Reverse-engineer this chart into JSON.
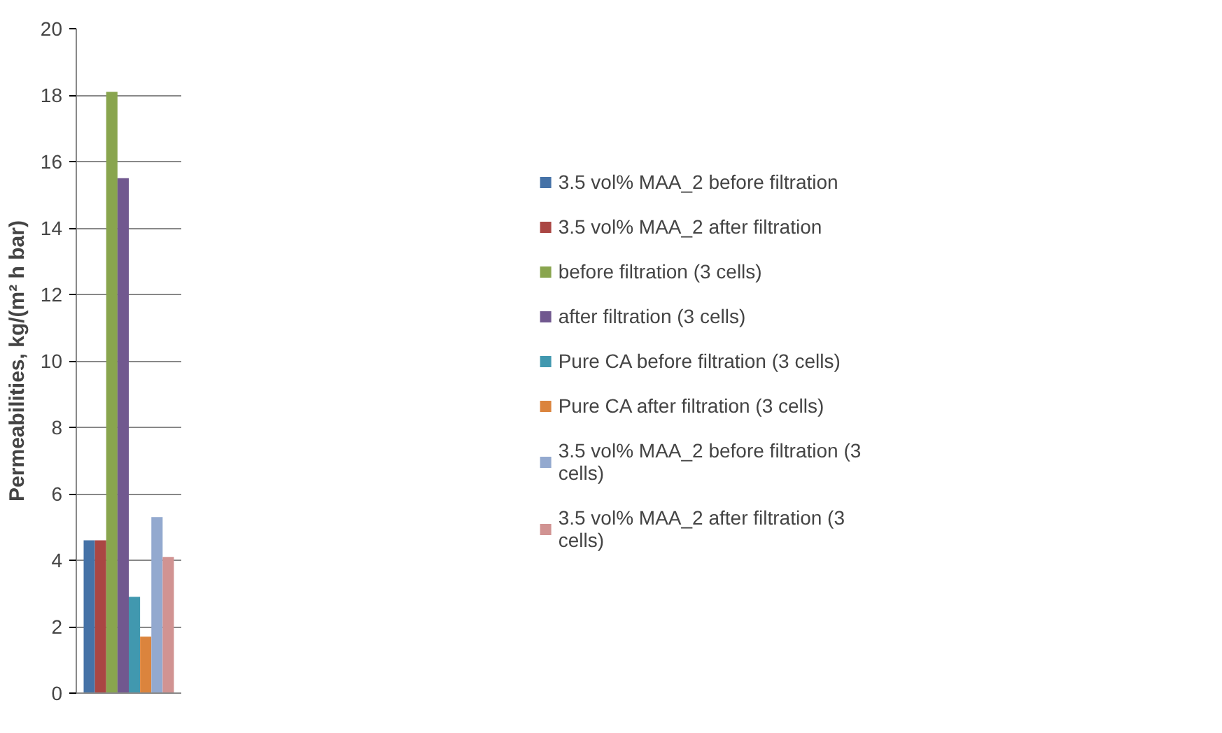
{
  "chart_data": {
    "type": "bar",
    "ylabel": "Permeabilities, kg/(m² h bar)",
    "categories": [
      null
    ],
    "series": [
      {
        "name": "3.5 vol% MAA_2 before filtration",
        "color": "#4572a7",
        "values": [
          4.6
        ]
      },
      {
        "name": "3.5 vol% MAA_2 after filtration",
        "color": "#aa4643",
        "values": [
          4.6
        ]
      },
      {
        "name": "before filtration (3 cells)",
        "color": "#89a54e",
        "values": [
          18.1
        ]
      },
      {
        "name": "after filtration (3 cells)",
        "color": "#71588f",
        "values": [
          15.5
        ]
      },
      {
        "name": "Pure CA before filtration (3 cells)",
        "color": "#4198af",
        "values": [
          2.9
        ]
      },
      {
        "name": "Pure CA after filtration (3 cells)",
        "color": "#db843d",
        "values": [
          1.7
        ]
      },
      {
        "name": "3.5 vol% MAA_2 before filtration (3 cells)",
        "color": "#93a9cf",
        "values": [
          5.3
        ]
      },
      {
        "name": "3.5 vol% MAA_2 after filtration (3 cells)",
        "color": "#d19392",
        "values": [
          4.1
        ]
      }
    ],
    "ylim": [
      0,
      20
    ],
    "yticks": [
      0,
      2,
      4,
      6,
      8,
      10,
      12,
      14,
      16,
      18,
      20
    ],
    "grid": "y",
    "legend": "right"
  }
}
